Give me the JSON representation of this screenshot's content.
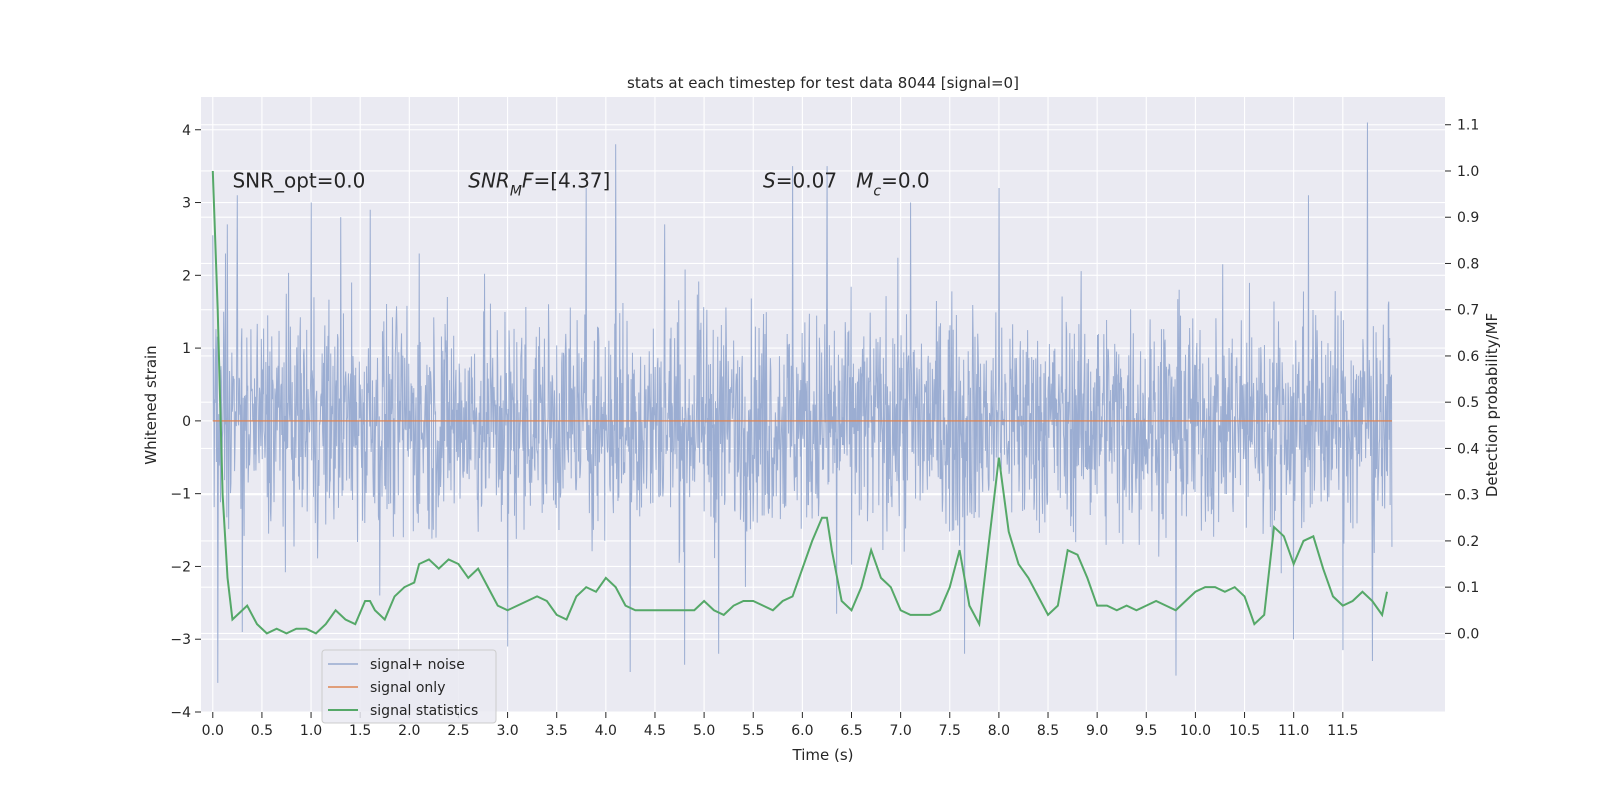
{
  "chart_data": {
    "type": "line",
    "title": "stats at each timestep for test data 8044 [signal=0]",
    "xlabel": "Time (s)",
    "ylabel": "Whitened strain",
    "ylabel_right": "Detection probability/MF",
    "xlim": [
      -0.12,
      12.54
    ],
    "ylim": [
      -4,
      4.45
    ],
    "ylim_right": [
      -0.17,
      1.16
    ],
    "x_ticks": [
      0.0,
      0.5,
      1.0,
      1.5,
      2.0,
      2.5,
      3.0,
      3.5,
      4.0,
      4.5,
      5.0,
      5.5,
      6.0,
      6.5,
      7.0,
      7.5,
      8.0,
      8.5,
      9.0,
      9.5,
      10.0,
      10.5,
      11.0,
      11.5
    ],
    "x_tick_labels": [
      "0.0",
      "0.5",
      "1.0",
      "1.5",
      "2.0",
      "2.5",
      "3.0",
      "3.5",
      "4.0",
      "4.5",
      "5.0",
      "5.5",
      "6.0",
      "6.5",
      "7.0",
      "7.5",
      "8.0",
      "8.5",
      "9.0",
      "9.5",
      "10.0",
      "10.5",
      "11.0",
      "11.5"
    ],
    "y_ticks": [
      -4,
      -3,
      -2,
      -1,
      0,
      1,
      2,
      3,
      4
    ],
    "y_tick_labels": [
      "−4",
      "−3",
      "−2",
      "−1",
      "0",
      "1",
      "2",
      "3",
      "4"
    ],
    "y_ticks_right": [
      0.0,
      0.1,
      0.2,
      0.3,
      0.4,
      0.5,
      0.6,
      0.7,
      0.8,
      0.9,
      1.0,
      1.1
    ],
    "y_tick_labels_right": [
      "0.0",
      "0.1",
      "0.2",
      "0.3",
      "0.4",
      "0.5",
      "0.6",
      "0.7",
      "0.8",
      "0.9",
      "1.0",
      "1.1"
    ],
    "grid": true,
    "legend_position": "lower-left",
    "annotations": [
      {
        "text": "SNR_opt=0.0",
        "x": 0.2,
        "y": 3.3
      },
      {
        "text": "SNR_MF=[4.37]",
        "x": 2.6,
        "y": 3.3
      },
      {
        "text": "S=0.07  M_c=0.0",
        "x": 5.6,
        "y": 3.3
      }
    ],
    "series": [
      {
        "name": "signal+ noise",
        "axis": "left",
        "color": "#97aad0",
        "x_range": [
          0.0,
          12.0
        ],
        "typical_envelope": [
          -1.6,
          1.45
        ],
        "peaks_high": [
          [
            0.0,
            2.55
          ],
          [
            0.13,
            2.3
          ],
          [
            0.15,
            2.7
          ],
          [
            0.25,
            3.1
          ],
          [
            1.0,
            3.0
          ],
          [
            1.3,
            2.8
          ],
          [
            1.6,
            2.9
          ],
          [
            2.1,
            2.3
          ],
          [
            3.8,
            3.2
          ],
          [
            4.1,
            3.8
          ],
          [
            4.6,
            2.7
          ],
          [
            5.9,
            3.5
          ],
          [
            6.25,
            3.5
          ],
          [
            7.1,
            3.0
          ],
          [
            8.0,
            3.2
          ],
          [
            9.8,
            2.5
          ],
          [
            11.15,
            3.1
          ],
          [
            11.75,
            4.1
          ]
        ],
        "peaks_low": [
          [
            0.05,
            -3.6
          ],
          [
            0.3,
            -2.9
          ],
          [
            1.7,
            -2.4
          ],
          [
            3.0,
            -3.1
          ],
          [
            4.25,
            -3.45
          ],
          [
            4.8,
            -3.35
          ],
          [
            5.15,
            -3.2
          ],
          [
            6.35,
            -2.65
          ],
          [
            7.65,
            -3.2
          ],
          [
            9.8,
            -3.5
          ],
          [
            11.0,
            -3.0
          ],
          [
            11.5,
            -3.15
          ],
          [
            11.8,
            -3.3
          ]
        ]
      },
      {
        "name": "signal only",
        "axis": "left",
        "color": "#dd8452",
        "x": [
          0.0,
          12.0
        ],
        "y": [
          0.0,
          0.0
        ]
      },
      {
        "name": "signal statistics",
        "axis": "right",
        "color": "#55a868",
        "x": [
          0.0,
          0.05,
          0.1,
          0.15,
          0.2,
          0.3,
          0.35,
          0.45,
          0.55,
          0.65,
          0.75,
          0.85,
          0.95,
          1.05,
          1.15,
          1.25,
          1.35,
          1.45,
          1.55,
          1.6,
          1.65,
          1.75,
          1.85,
          1.95,
          2.05,
          2.1,
          2.2,
          2.3,
          2.4,
          2.5,
          2.6,
          2.7,
          2.8,
          2.9,
          3.0,
          3.1,
          3.2,
          3.3,
          3.4,
          3.5,
          3.6,
          3.7,
          3.8,
          3.9,
          4.0,
          4.1,
          4.2,
          4.3,
          4.4,
          4.5,
          4.6,
          4.7,
          4.8,
          4.9,
          5.0,
          5.1,
          5.2,
          5.3,
          5.4,
          5.5,
          5.6,
          5.7,
          5.8,
          5.9,
          6.0,
          6.1,
          6.2,
          6.25,
          6.3,
          6.4,
          6.5,
          6.6,
          6.7,
          6.8,
          6.9,
          7.0,
          7.1,
          7.2,
          7.3,
          7.4,
          7.5,
          7.6,
          7.7,
          7.8,
          7.9,
          8.0,
          8.1,
          8.2,
          8.3,
          8.4,
          8.5,
          8.6,
          8.7,
          8.8,
          8.9,
          9.0,
          9.1,
          9.2,
          9.3,
          9.4,
          9.5,
          9.6,
          9.7,
          9.8,
          9.9,
          10.0,
          10.1,
          10.2,
          10.3,
          10.4,
          10.5,
          10.6,
          10.7,
          10.8,
          10.9,
          11.0,
          11.1,
          11.2,
          11.3,
          11.4,
          11.5,
          11.6,
          11.7,
          11.8,
          11.9,
          11.95
        ],
        "y": [
          1.0,
          0.7,
          0.3,
          0.12,
          0.03,
          0.05,
          0.06,
          0.02,
          0.0,
          0.01,
          0.0,
          0.01,
          0.01,
          0.0,
          0.02,
          0.05,
          0.03,
          0.02,
          0.07,
          0.07,
          0.05,
          0.03,
          0.08,
          0.1,
          0.11,
          0.15,
          0.16,
          0.14,
          0.16,
          0.15,
          0.12,
          0.14,
          0.1,
          0.06,
          0.05,
          0.06,
          0.07,
          0.08,
          0.07,
          0.04,
          0.03,
          0.08,
          0.1,
          0.09,
          0.12,
          0.1,
          0.06,
          0.05,
          0.05,
          0.05,
          0.05,
          0.05,
          0.05,
          0.05,
          0.07,
          0.05,
          0.04,
          0.06,
          0.07,
          0.07,
          0.06,
          0.05,
          0.07,
          0.08,
          0.14,
          0.2,
          0.25,
          0.25,
          0.18,
          0.07,
          0.05,
          0.1,
          0.18,
          0.12,
          0.1,
          0.05,
          0.04,
          0.04,
          0.04,
          0.05,
          0.1,
          0.18,
          0.06,
          0.02,
          0.2,
          0.38,
          0.22,
          0.15,
          0.12,
          0.08,
          0.04,
          0.06,
          0.18,
          0.17,
          0.12,
          0.06,
          0.06,
          0.05,
          0.06,
          0.05,
          0.06,
          0.07,
          0.06,
          0.05,
          0.07,
          0.09,
          0.1,
          0.1,
          0.09,
          0.1,
          0.08,
          0.02,
          0.04,
          0.23,
          0.21,
          0.15,
          0.2,
          0.21,
          0.14,
          0.08,
          0.06,
          0.07,
          0.09,
          0.07,
          0.04,
          0.09
        ]
      }
    ]
  }
}
